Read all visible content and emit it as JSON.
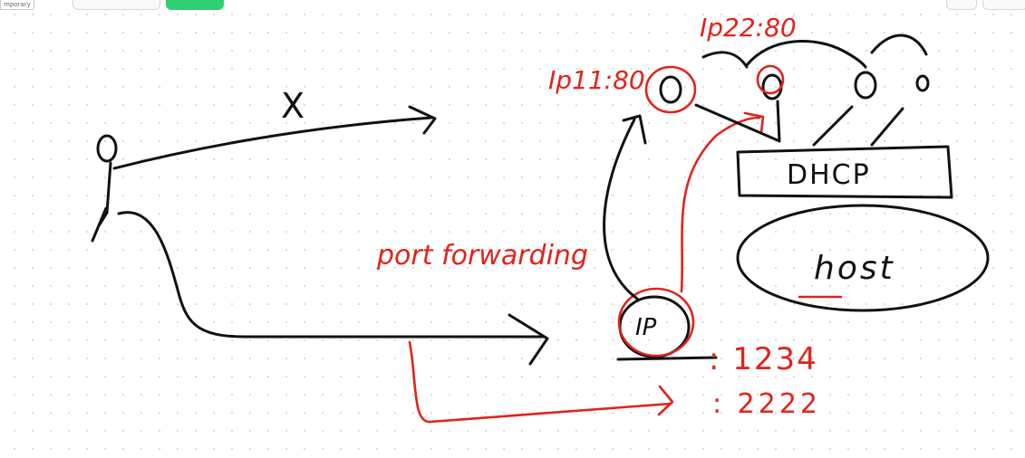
{
  "toolbar": {
    "mode_label": "mporary"
  },
  "colors": {
    "ink_black": "#111111",
    "ink_red": "#e2231a",
    "accent_green": "#2fcf73"
  },
  "diagram": {
    "client_cross_label": "X",
    "port_forwarding_label": "port forwarding",
    "left_server_label": "Ip11:80",
    "top_server_label": "Ip22:80",
    "dhcp_label": "DHCP",
    "host_label": "host",
    "router_label": "IP",
    "port_a_label": ": 1234",
    "port_b_label": ": 2222"
  }
}
